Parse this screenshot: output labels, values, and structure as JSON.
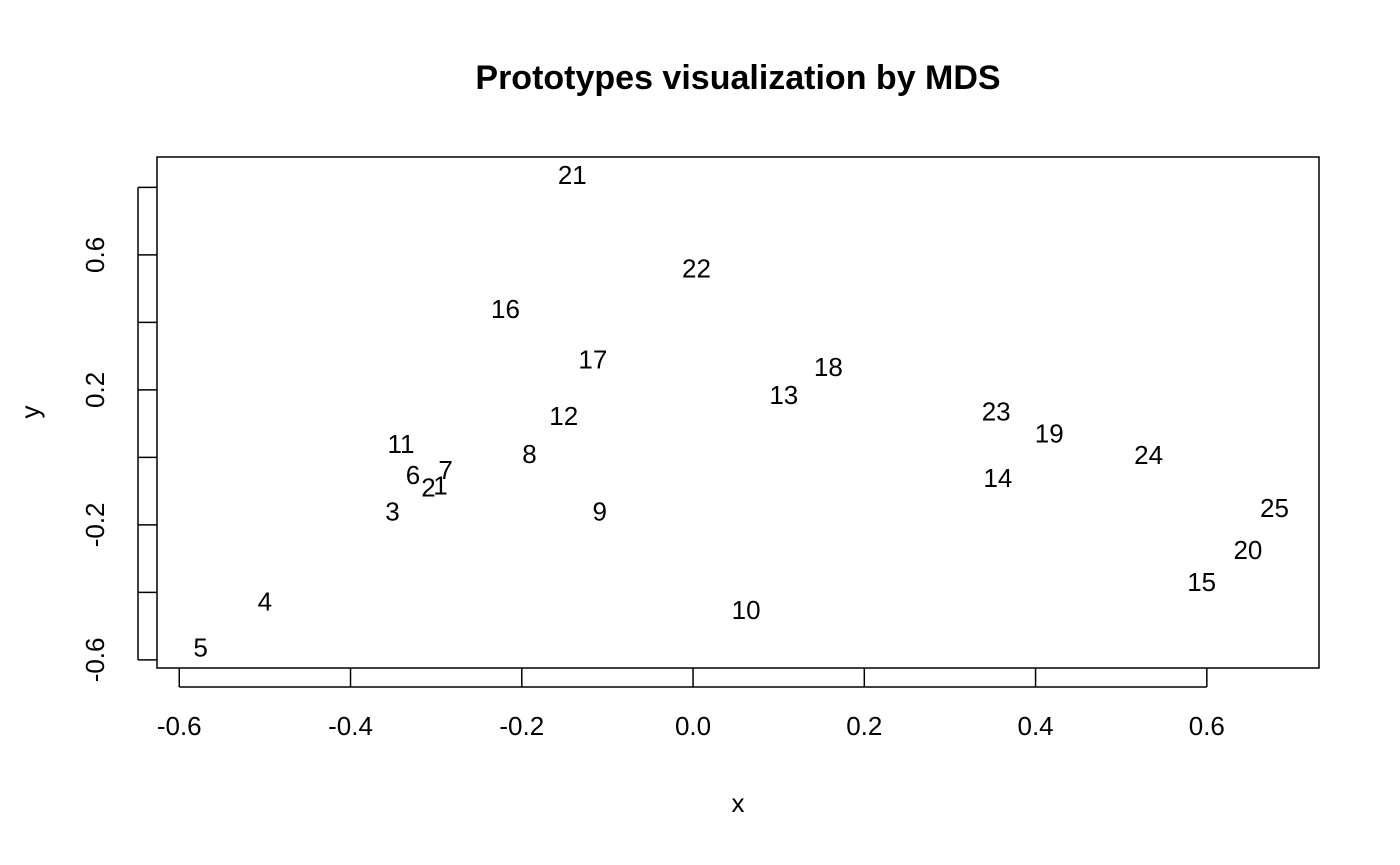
{
  "chart_data": {
    "type": "scatter",
    "title": "Prototypes visualization by MDS",
    "x_label": "x",
    "y_label": "y",
    "labels": [
      "1",
      "2",
      "3",
      "4",
      "5",
      "6",
      "7",
      "8",
      "9",
      "10",
      "11",
      "12",
      "13",
      "14",
      "15",
      "16",
      "17",
      "18",
      "19",
      "20",
      "21",
      "22",
      "23",
      "24",
      "25"
    ],
    "x": [
      -0.295,
      -0.309,
      -0.351,
      -0.5,
      -0.575,
      -0.327,
      -0.289,
      -0.191,
      -0.109,
      0.062,
      -0.341,
      -0.151,
      0.106,
      0.356,
      0.594,
      -0.219,
      -0.117,
      0.158,
      0.416,
      0.648,
      -0.141,
      0.004,
      0.354,
      0.532,
      0.679
    ],
    "values": [
      -0.09,
      -0.096,
      -0.167,
      -0.434,
      -0.57,
      -0.058,
      -0.043,
      0.004,
      -0.167,
      -0.458,
      0.034,
      0.117,
      0.179,
      -0.067,
      -0.375,
      0.434,
      0.283,
      0.262,
      0.064,
      -0.28,
      0.831,
      0.553,
      0.129,
      0.001,
      -0.156
    ],
    "color": "#000000",
    "xlim": [
      -0.626,
      0.731
    ],
    "ylim": [
      -0.624,
      0.89
    ],
    "xticks": [
      -0.6,
      -0.4,
      -0.2,
      {
        "value": 0,
        "label": "0.0"
      },
      0.2,
      0.4,
      0.6
    ],
    "yticks": [
      -0.6,
      {
        "value": -0.4,
        "label": null
      },
      -0.2,
      {
        "value": 0,
        "label": null
      },
      0.2,
      {
        "value": 0.4,
        "label": null
      },
      0.6,
      {
        "value": 0.8,
        "label": null
      }
    ],
    "grid": false
  }
}
